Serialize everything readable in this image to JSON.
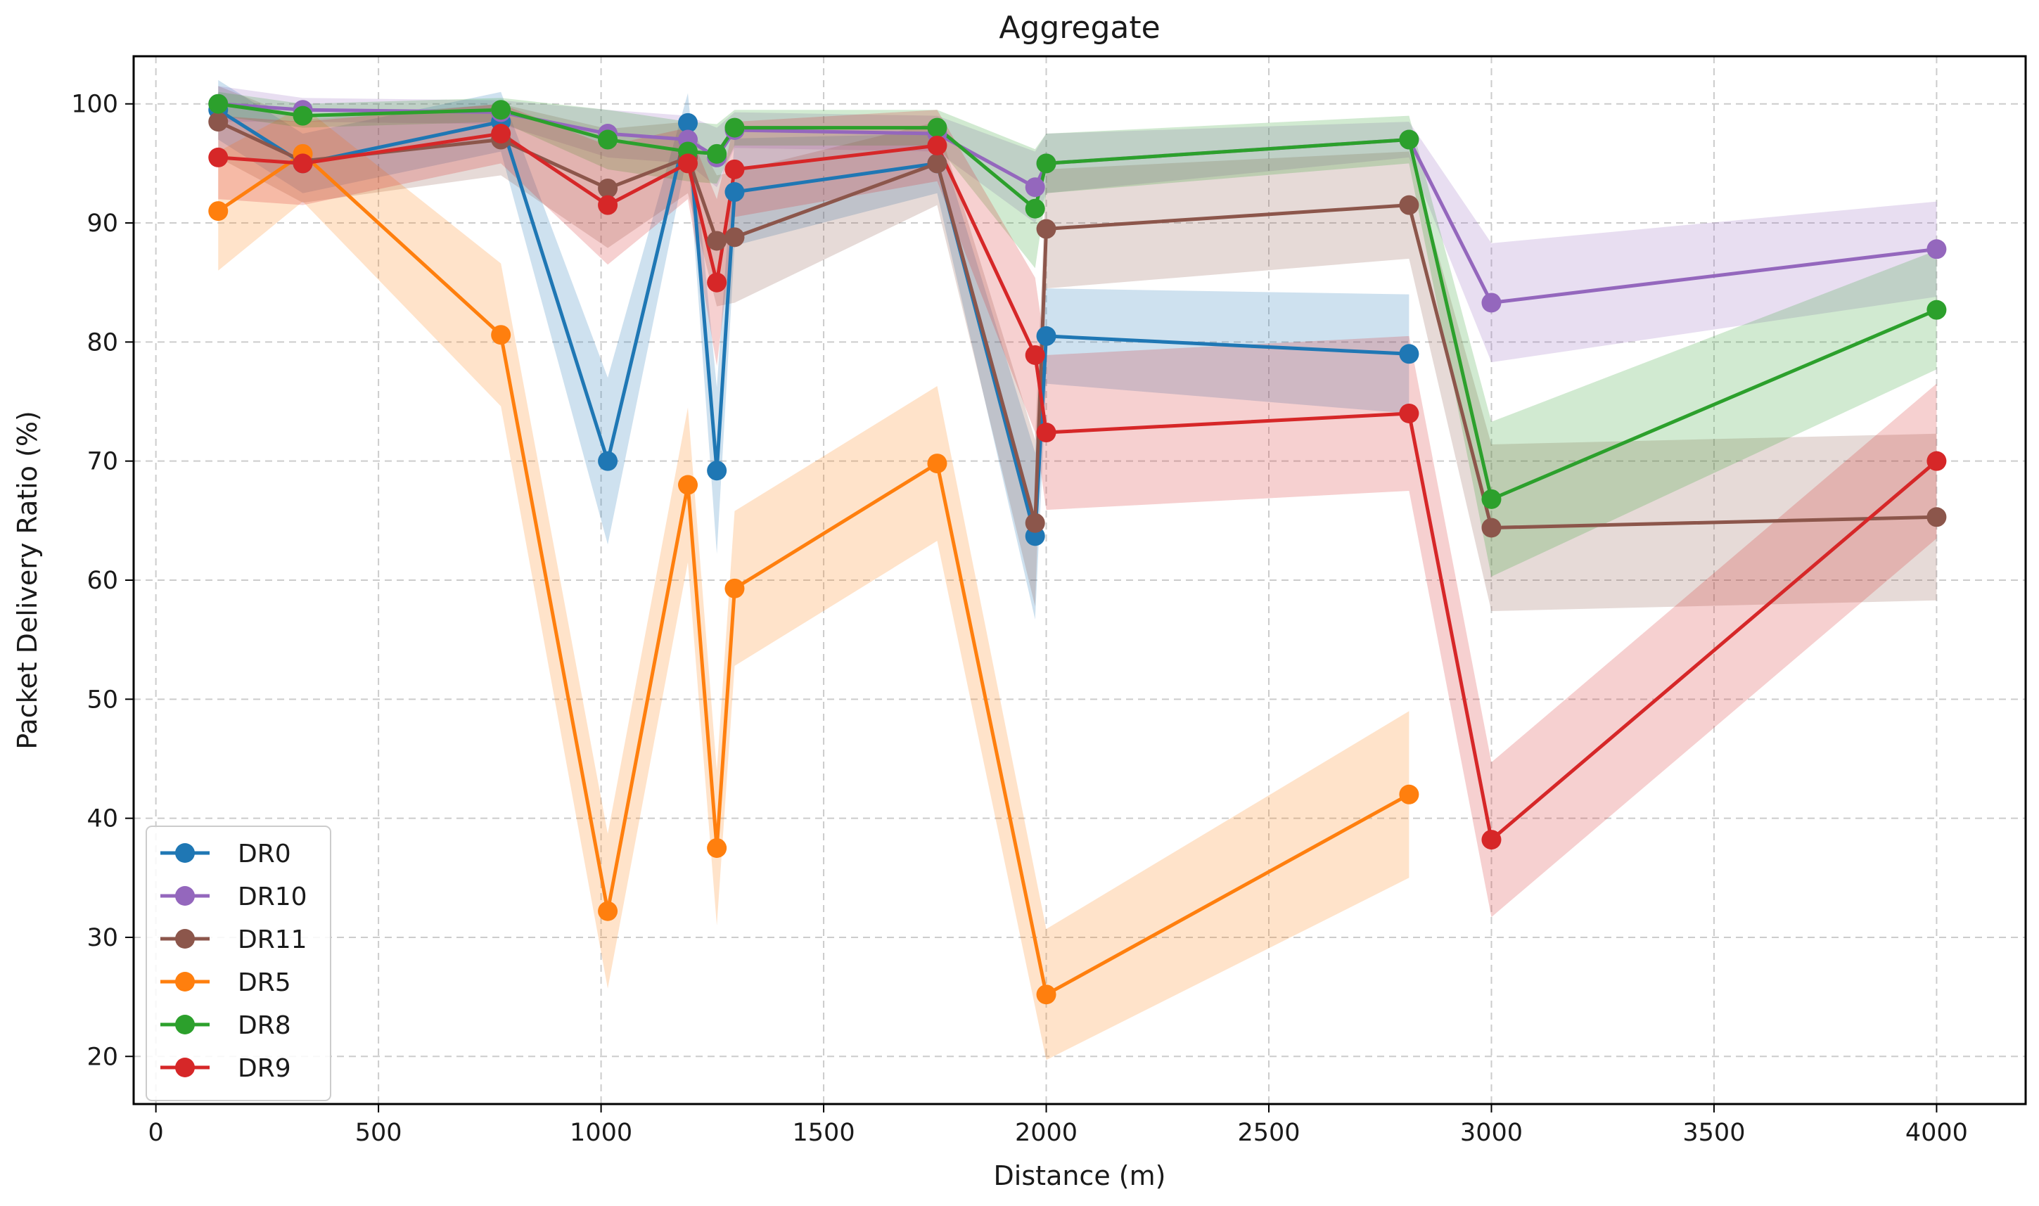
{
  "chart_data": {
    "type": "line",
    "title": "Aggregate",
    "xlabel": "Distance (m)",
    "ylabel": "Packet Delivery Ratio (%)",
    "xlim": [
      -50,
      4200
    ],
    "ylim": [
      16,
      104
    ],
    "xticks": [
      0,
      500,
      1000,
      1500,
      2000,
      2500,
      3000,
      3500,
      4000
    ],
    "yticks": [
      20,
      30,
      40,
      50,
      60,
      70,
      80,
      90,
      100
    ],
    "grid": true,
    "legend_position": "lower-left",
    "series": [
      {
        "name": "DR0",
        "color": "#1f77b4",
        "x": [
          140,
          330,
          775,
          1015,
          1195,
          1260,
          1300,
          1755,
          1975,
          2000,
          2815
        ],
        "y": [
          99.5,
          95.0,
          98.5,
          70.0,
          98.4,
          69.2,
          92.6,
          95.0,
          63.7,
          80.5,
          79.0
        ],
        "band": [
          2.5,
          2.5,
          2.5,
          7.0,
          2.5,
          7.0,
          4.5,
          2.5,
          7.0,
          4.0,
          5.0
        ]
      },
      {
        "name": "DR10",
        "color": "#9467bd",
        "x": [
          140,
          330,
          775,
          1015,
          1195,
          1260,
          1300,
          1755,
          1975,
          2000,
          2815,
          3000,
          4000
        ],
        "y": [
          100.0,
          99.5,
          99.3,
          97.5,
          97.0,
          95.5,
          97.8,
          97.5,
          93.0,
          95.0,
          97.0,
          83.3,
          87.8
        ],
        "band": [
          1.5,
          1.0,
          1.0,
          2.0,
          2.0,
          2.5,
          1.5,
          1.5,
          3.0,
          2.5,
          1.5,
          5.0,
          4.0
        ]
      },
      {
        "name": "DR11",
        "color": "#8c564b",
        "x": [
          140,
          330,
          775,
          1015,
          1195,
          1260,
          1300,
          1755,
          1975,
          2000,
          2815,
          3000,
          4000
        ],
        "y": [
          98.5,
          95.2,
          97.0,
          92.9,
          95.5,
          88.5,
          88.8,
          95.0,
          64.8,
          89.5,
          91.5,
          64.4,
          65.3
        ],
        "band": [
          3.0,
          3.5,
          3.0,
          5.0,
          3.0,
          5.5,
          5.5,
          3.5,
          7.0,
          5.0,
          4.5,
          7.0,
          7.0
        ]
      },
      {
        "name": "DR5",
        "color": "#ff7f0e",
        "x": [
          140,
          330,
          775,
          1015,
          1195,
          1260,
          1300,
          1755,
          2000,
          2815
        ],
        "y": [
          91.0,
          95.8,
          80.6,
          32.2,
          68.0,
          37.5,
          59.3,
          69.8,
          25.2,
          42.0
        ],
        "band": [
          5.0,
          4.0,
          6.0,
          6.5,
          6.5,
          6.5,
          6.5,
          6.5,
          5.5,
          7.0
        ]
      },
      {
        "name": "DR8",
        "color": "#2ca02c",
        "x": [
          140,
          330,
          775,
          1015,
          1195,
          1260,
          1300,
          1755,
          1975,
          2000,
          2815,
          3000,
          4000
        ],
        "y": [
          100.0,
          99.0,
          99.5,
          97.0,
          96.0,
          95.8,
          98.0,
          98.0,
          91.2,
          95.0,
          97.0,
          66.8,
          82.7
        ],
        "band": [
          1.0,
          1.0,
          1.0,
          2.5,
          2.5,
          2.5,
          1.5,
          1.5,
          5.0,
          2.5,
          2.0,
          6.5,
          5.0
        ]
      },
      {
        "name": "DR9",
        "color": "#d62728",
        "x": [
          140,
          330,
          775,
          1015,
          1195,
          1260,
          1300,
          1755,
          1975,
          2000,
          2815,
          3000,
          4000
        ],
        "y": [
          95.5,
          95.0,
          97.5,
          91.5,
          95.0,
          85.0,
          94.5,
          96.5,
          78.9,
          72.4,
          74.0,
          38.2,
          70.0
        ],
        "band": [
          3.5,
          3.5,
          2.5,
          5.0,
          3.0,
          7.0,
          4.0,
          3.0,
          6.5,
          6.5,
          6.5,
          6.5,
          6.5
        ]
      }
    ]
  }
}
